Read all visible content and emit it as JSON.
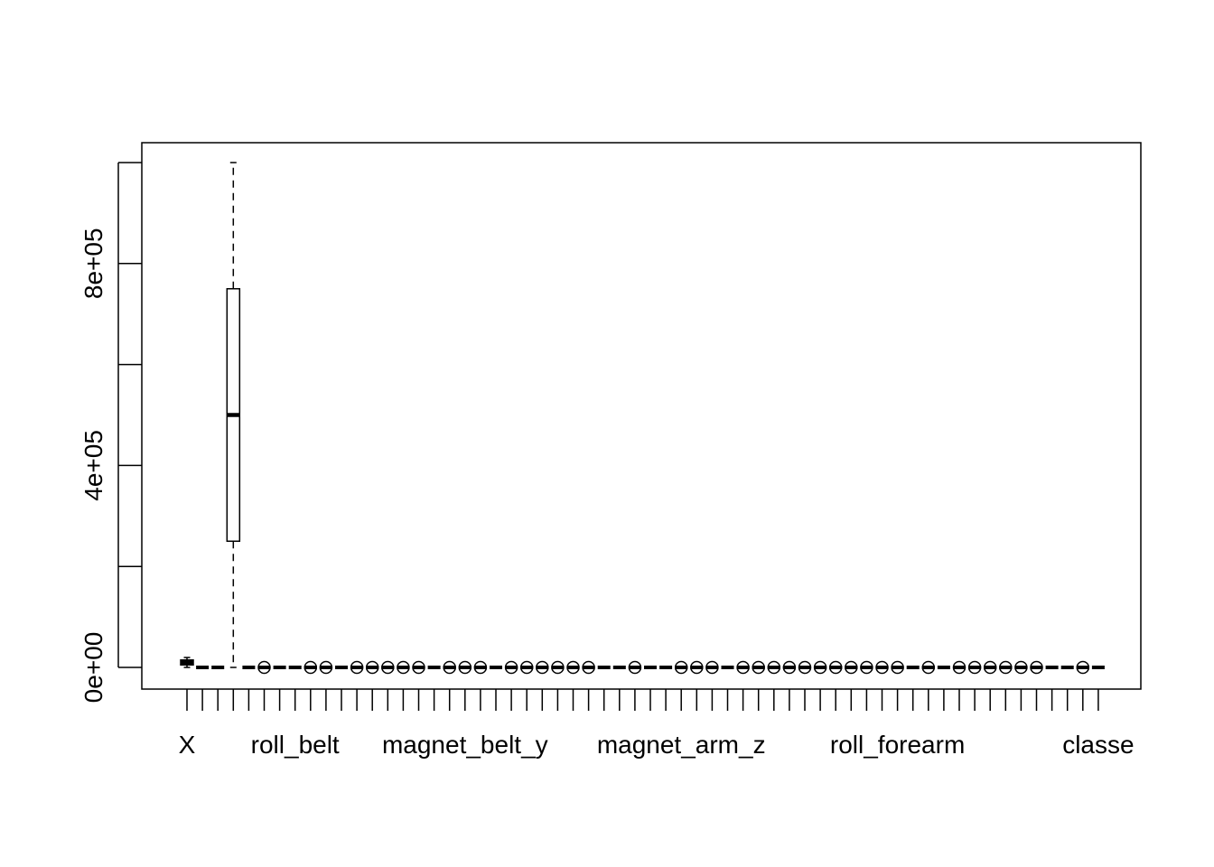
{
  "chart_data": {
    "type": "boxplot",
    "title": "",
    "xlabel": "",
    "ylabel": "",
    "ylim": [
      -45000,
      1040000
    ],
    "y_ticks": [
      0,
      200000,
      400000,
      600000,
      800000,
      1000000
    ],
    "y_tick_labels": [
      {
        "value": 0,
        "label": "0e+00"
      },
      {
        "value": 400000,
        "label": "4e+05"
      },
      {
        "value": 800000,
        "label": "8e+05"
      }
    ],
    "n_variables": 60,
    "x_tick_labels": [
      {
        "index": 1,
        "label": "X"
      },
      {
        "index": 8,
        "label": "roll_belt"
      },
      {
        "index": 19,
        "label": "magnet_belt_y"
      },
      {
        "index": 33,
        "label": "magnet_arm_z"
      },
      {
        "index": 47,
        "label": "roll_forearm"
      },
      {
        "index": 60,
        "label": "classe"
      }
    ],
    "boxes": [
      {
        "index": 1,
        "label": "X",
        "min": 1,
        "q1": 4906,
        "median": 9812,
        "q3": 14717,
        "max": 19622
      },
      {
        "index": 4,
        "label": "",
        "min": 0,
        "q1": 250000,
        "median": 500000,
        "q3": 750000,
        "max": 1000000
      }
    ],
    "flat_series_value": 0,
    "outlier_columns": [
      6,
      9,
      10,
      12,
      13,
      14,
      15,
      16,
      18,
      19,
      20,
      22,
      23,
      24,
      25,
      26,
      27,
      30,
      33,
      34,
      35,
      37,
      38,
      39,
      40,
      41,
      42,
      43,
      44,
      45,
      46,
      47,
      49,
      51,
      52,
      53,
      54,
      55,
      56,
      59
    ]
  }
}
